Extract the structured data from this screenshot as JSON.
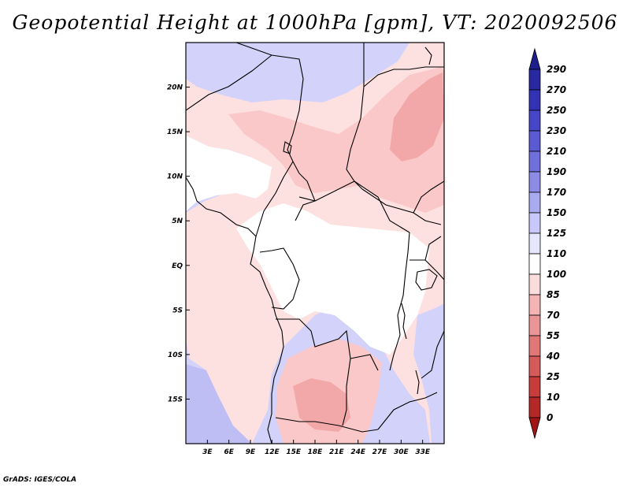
{
  "title": "Geopotential Height at 1000hPa [gpm], VT: 2020092506",
  "credit": "GrADS: IGES/COLA",
  "map": {
    "lon_range": [
      0,
      36
    ],
    "lat_range": [
      -20,
      25
    ],
    "x_ticks": [
      "3E",
      "6E",
      "9E",
      "12E",
      "15E",
      "18E",
      "21E",
      "24E",
      "27E",
      "30E",
      "33E"
    ],
    "y_ticks": [
      "20N",
      "15N",
      "10N",
      "5N",
      "EQ",
      "5S",
      "10S",
      "15S"
    ]
  },
  "colorbar": {
    "levels": [
      "290",
      "270",
      "250",
      "230",
      "210",
      "190",
      "170",
      "150",
      "125",
      "110",
      "100",
      "85",
      "70",
      "55",
      "40",
      "25",
      "10",
      "0"
    ],
    "colors": [
      "#1e1e8c",
      "#2828a0",
      "#3232b4",
      "#4646c8",
      "#5a5ad2",
      "#7070dc",
      "#8c8ce6",
      "#aaaaf0",
      "#c8c8fa",
      "#e6e6ff",
      "#ffffff",
      "#fadcdc",
      "#f5b4b4",
      "#eb9696",
      "#e17878",
      "#d75a5a",
      "#c83c3c",
      "#b42828",
      "#a01414"
    ]
  },
  "colors": {
    "ocean": "#d2d2fa",
    "ocean_deep": "#bebef5",
    "land_white": "#ffffff",
    "pink_light": "#fde1e1",
    "pink_mid": "#fac8c8",
    "pink_dark": "#f2a8a8",
    "border": "#000000"
  }
}
